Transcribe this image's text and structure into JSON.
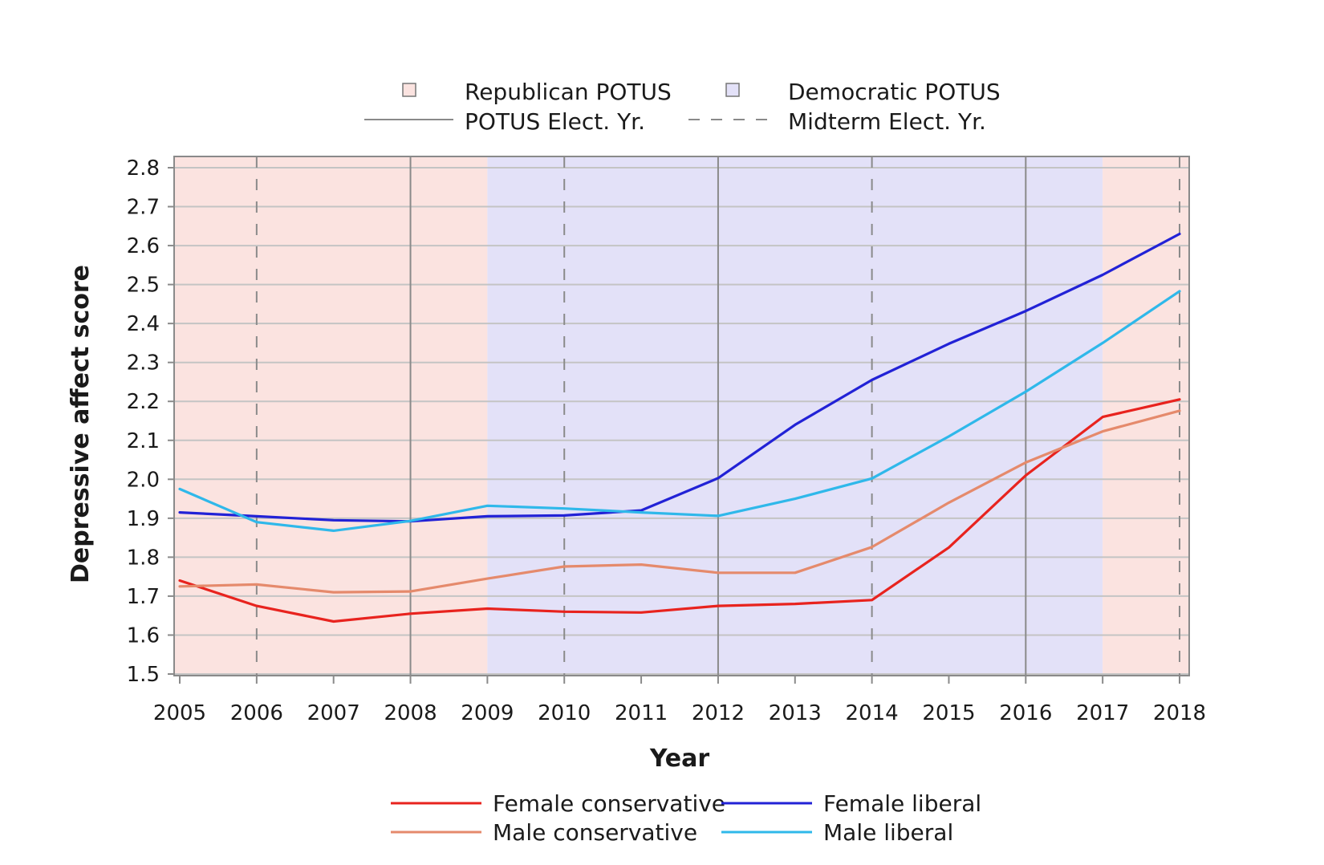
{
  "chart_data": {
    "type": "line",
    "title": "",
    "xlabel": "Year",
    "ylabel": "Depressive affect score",
    "x": [
      2005,
      2006,
      2007,
      2008,
      2009,
      2010,
      2011,
      2012,
      2013,
      2014,
      2015,
      2016,
      2017,
      2018
    ],
    "xlim": [
      2005,
      2018
    ],
    "ylim": [
      1.5,
      2.8
    ],
    "y_ticks": [
      "1.5",
      "1.6",
      "1.7",
      "1.8",
      "1.9",
      "2.0",
      "2.1",
      "2.2",
      "2.3",
      "2.4",
      "2.5",
      "2.6",
      "2.7",
      "2.8"
    ],
    "grid": true,
    "series": [
      {
        "name": "Female conservative",
        "color": "#e8231e",
        "values": [
          1.74,
          1.675,
          1.635,
          1.655,
          1.668,
          1.66,
          1.658,
          1.675,
          1.68,
          1.69,
          1.825,
          2.01,
          2.16,
          2.205
        ]
      },
      {
        "name": "Male conservative",
        "color": "#e58a6c",
        "values": [
          1.725,
          1.73,
          1.71,
          1.712,
          1.745,
          1.776,
          1.781,
          1.76,
          1.76,
          1.826,
          1.94,
          2.043,
          2.123,
          2.176
        ]
      },
      {
        "name": "Female liberal",
        "color": "#2222d6",
        "values": [
          1.915,
          1.905,
          1.895,
          1.892,
          1.905,
          1.907,
          1.92,
          2.003,
          2.14,
          2.255,
          2.348,
          2.432,
          2.525,
          2.63
        ]
      },
      {
        "name": "Male liberal",
        "color": "#2fb8ea",
        "values": [
          1.975,
          1.89,
          1.868,
          1.893,
          1.932,
          1.925,
          1.915,
          1.906,
          1.95,
          2.002,
          2.11,
          2.225,
          2.35,
          2.483
        ]
      }
    ],
    "presidency_shading": [
      {
        "party": "Republican POTUS",
        "from": 2005,
        "to": 2009,
        "color": "#fbe3e0"
      },
      {
        "party": "Democratic POTUS",
        "from": 2009,
        "to": 2017,
        "color": "#e3e1f8"
      },
      {
        "party": "Republican POTUS",
        "from": 2017,
        "to": 2018,
        "color": "#fbe3e0"
      }
    ],
    "potus_election_years": [
      2008,
      2012,
      2016
    ],
    "midterm_election_years": [
      2006,
      2010,
      2014,
      2018
    ],
    "top_legend": {
      "republican_label": "Republican POTUS",
      "democratic_label": "Democratic POTUS",
      "potus_label": "POTUS Elect. Yr.",
      "midterm_label": "Midterm Elect. Yr."
    },
    "legend_placement": "bottom"
  }
}
